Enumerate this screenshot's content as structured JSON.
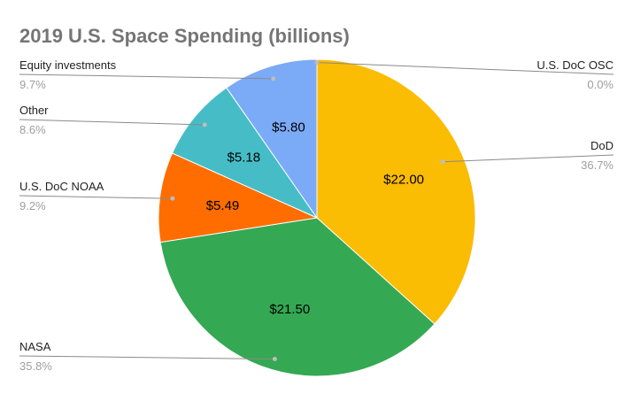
{
  "chart_data": {
    "type": "pie",
    "title": "2019 U.S. Space Spending (billions)",
    "slices": [
      {
        "name": "DoD",
        "value": 22.0,
        "value_label": "$22.00",
        "percent_label": "36.7%",
        "color": "#fbbc04"
      },
      {
        "name": "NASA",
        "value": 21.5,
        "value_label": "$21.50",
        "percent_label": "35.8%",
        "color": "#34a853"
      },
      {
        "name": "U.S. DoC NOAA",
        "value": 5.49,
        "value_label": "$5.49",
        "percent_label": "9.2%",
        "color": "#ff6d01"
      },
      {
        "name": "Other",
        "value": 5.18,
        "value_label": "$5.18",
        "percent_label": "8.6%",
        "color": "#46bdc6"
      },
      {
        "name": "Equity investments",
        "value": 5.8,
        "value_label": "$5.80",
        "percent_label": "9.7%",
        "color": "#7baaf7"
      },
      {
        "name": "U.S. DoC OSC",
        "value": 0.0,
        "value_label": "",
        "percent_label": "0.0%",
        "color": "#ab30c4"
      }
    ]
  }
}
